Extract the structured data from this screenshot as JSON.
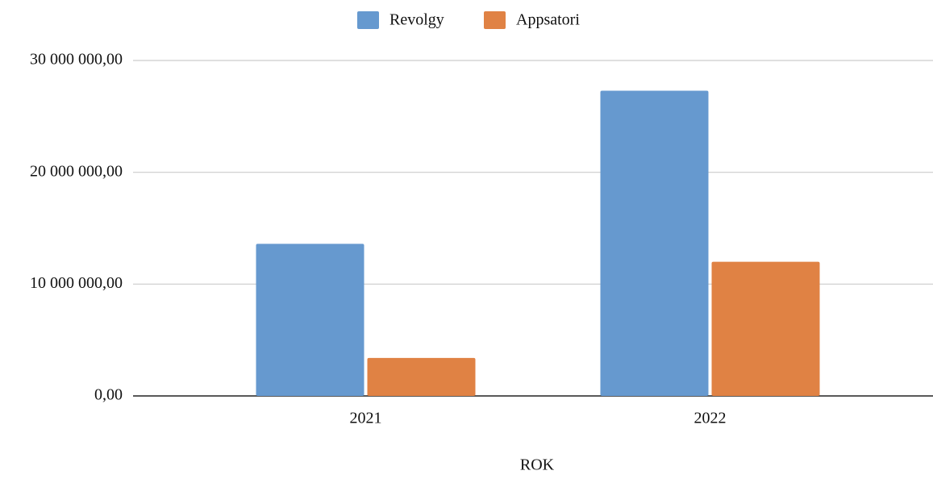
{
  "chart_data": {
    "type": "bar",
    "x_label": "ROK",
    "categories": [
      "2021",
      "2022"
    ],
    "series": [
      {
        "name": "Revolgy",
        "color": "#6699cf",
        "values": [
          13600000,
          27300000
        ]
      },
      {
        "name": "Appsatori",
        "color": "#e08244",
        "values": [
          3400000,
          12000000
        ]
      }
    ],
    "ylim": [
      0,
      30000000
    ],
    "yticks": [
      {
        "value": 0,
        "label": "0,00"
      },
      {
        "value": 10000000,
        "label": "10 000 000,00"
      },
      {
        "value": 20000000,
        "label": "20 000 000,00"
      },
      {
        "value": 30000000,
        "label": "30 000 000,00"
      }
    ],
    "grid": true,
    "legend": "top"
  }
}
